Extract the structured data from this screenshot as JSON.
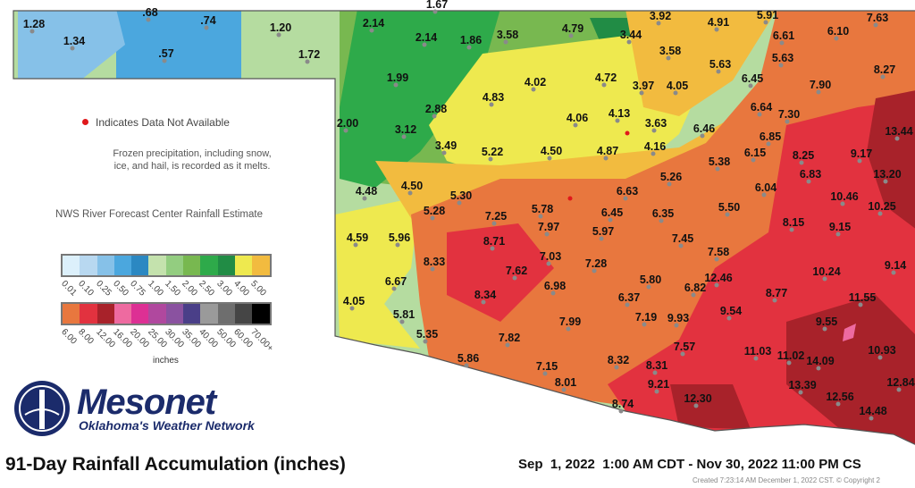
{
  "title": "91-Day Rainfall Accumulation (inches)",
  "date_range": "Sep  1, 2022  1:00 AM CDT - Nov 30, 2022 11:00 PM CS",
  "created": "Created 7:23:14 AM December 1, 2022 CST. © Copyright 2",
  "notes": {
    "not_available": "Indicates Data Not Available",
    "frozen": "Frozen precipitation, including snow, ice, and hail, is recorded as it melts.",
    "estimate": "NWS River Forecast Center Rainfall Estimate"
  },
  "logo": {
    "name": "Mesonet",
    "tagline": "Oklahoma's Weather Network"
  },
  "legend": {
    "units": "inches",
    "row1": [
      {
        "label": "0.01",
        "color": "#dcf0fb"
      },
      {
        "label": "0.10",
        "color": "#b8d8f0"
      },
      {
        "label": "0.25",
        "color": "#86c1e8"
      },
      {
        "label": "0.50",
        "color": "#4ba7de"
      },
      {
        "label": "0.75",
        "color": "#2b88c2"
      },
      {
        "label": "1.00",
        "color": "#c4e2ad"
      },
      {
        "label": "1.50",
        "color": "#93cd80"
      },
      {
        "label": "2.00",
        "color": "#78b850"
      },
      {
        "label": "2.50",
        "color": "#2eaa4a"
      },
      {
        "label": "3.00",
        "color": "#218c45"
      },
      {
        "label": "4.00",
        "color": "#eee94f"
      },
      {
        "label": "5.00",
        "color": "#f2bb3f"
      }
    ],
    "row2": [
      {
        "label": "6.00",
        "color": "#e8773e"
      },
      {
        "label": "8.00",
        "color": "#e2323f"
      },
      {
        "label": "12.00",
        "color": "#a8222a"
      },
      {
        "label": "16.00",
        "color": "#ee6aa0"
      },
      {
        "label": "20.00",
        "color": "#dd3094"
      },
      {
        "label": "25.00",
        "color": "#b0489e"
      },
      {
        "label": "30.00",
        "color": "#8a52a0"
      },
      {
        "label": "35.00",
        "color": "#4a3f88"
      },
      {
        "label": "40.00",
        "color": "#9a9a9a"
      },
      {
        "label": "50.00",
        "color": "#6e6e6e"
      },
      {
        "label": "60.00",
        "color": "#454545"
      },
      {
        "label": "70.00+",
        "color": "#000000"
      }
    ]
  },
  "stations": [
    "1.67",
    "1.28",
    "1.34",
    ".68",
    ".74",
    ".57",
    "1.20",
    "1.72",
    "2.14",
    "2.14",
    "1.86",
    "3.58",
    "4.79",
    "3.92",
    "4.91",
    "5.91",
    "7.63",
    "3.44",
    "6.61",
    "6.10",
    "3.58",
    "5.63",
    "5.63",
    "8.27",
    "1.99",
    "4.02",
    "4.72",
    "3.97",
    "4.05",
    "6.45",
    "7.90",
    "4.83",
    "2.88",
    "4.06",
    "4.13",
    "3.63",
    "6.64",
    "7.30",
    "2.00",
    "3.12",
    "3.49",
    "5.22",
    "4.50",
    "4.87",
    "4.16",
    "6.46",
    "6.85",
    "6.15",
    "8.25",
    "13.44",
    "9.17",
    "13.20",
    "5.38",
    "6.83",
    "6.04",
    "10.46",
    "10.25",
    "4.48",
    "4.50",
    "5.30",
    "5.28",
    "7.25",
    "5.78",
    "6.63",
    "5.26",
    "6.45",
    "6.35",
    "5.50",
    "8.15",
    "9.15",
    "4.59",
    "5.96",
    "8.71",
    "7.97",
    "5.97",
    "7.45",
    "7.58",
    "8.33",
    "7.62",
    "7.03",
    "7.28",
    "10.24",
    "9.14",
    "6.67",
    "8.34",
    "6.98",
    "5.80",
    "6.82",
    "12.46",
    "8.77",
    "4.05",
    "5.81",
    "6.37",
    "11.55",
    "9.54",
    "7.99",
    "7.19",
    "9.93",
    "9.55",
    "5.35",
    "7.82",
    "7.57",
    "11.03",
    "11.02",
    "14.09",
    "10.93",
    "5.86",
    "7.15",
    "8.32",
    "8.31",
    "8.01",
    "9.21",
    "13.39",
    "12.56",
    "12.84",
    "8.74",
    "12.30",
    "14.48"
  ],
  "missing_marker_color": "#e0181b"
}
